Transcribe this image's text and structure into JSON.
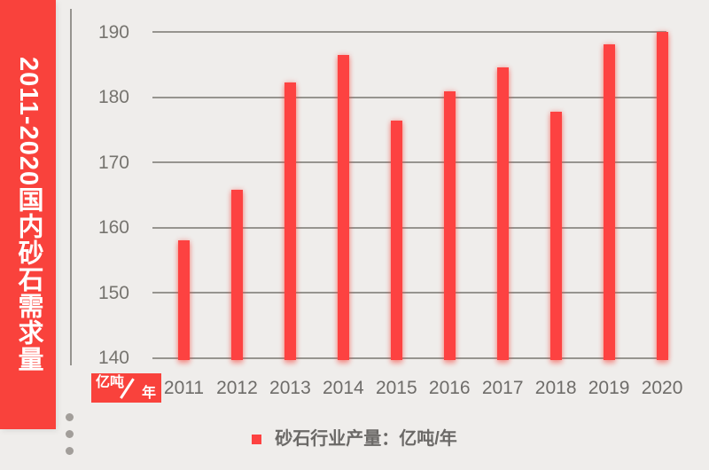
{
  "banner": {
    "title": "2011-2020国内砂石需求量"
  },
  "chart_data": {
    "type": "bar",
    "title": "2011-2020国内砂石需求量",
    "categories": [
      "2011",
      "2012",
      "2013",
      "2014",
      "2015",
      "2016",
      "2017",
      "2018",
      "2019",
      "2020"
    ],
    "values": [
      158,
      165.8,
      182.2,
      186.5,
      176.4,
      180.9,
      184.5,
      177.8,
      188.1,
      190
    ],
    "series_name": "砂石行业产量",
    "xlabel": "",
    "ylabel": "亿吨/年",
    "ylim": [
      140,
      190
    ],
    "yticks": [
      140,
      150,
      160,
      170,
      180,
      190
    ],
    "grid": true,
    "legend_position": "bottom"
  },
  "unit_badge": {
    "top": "亿吨",
    "bottom": "年"
  },
  "legend": {
    "label": "砂石行业产量：亿吨/年"
  },
  "colors": {
    "banner_red": "#f9423c",
    "bar_red": "#fd4241",
    "background": "#efedeb",
    "gridline_gray": "#96948f",
    "label_gray": "#76746f",
    "legend_text_gray": "#6b6967"
  }
}
